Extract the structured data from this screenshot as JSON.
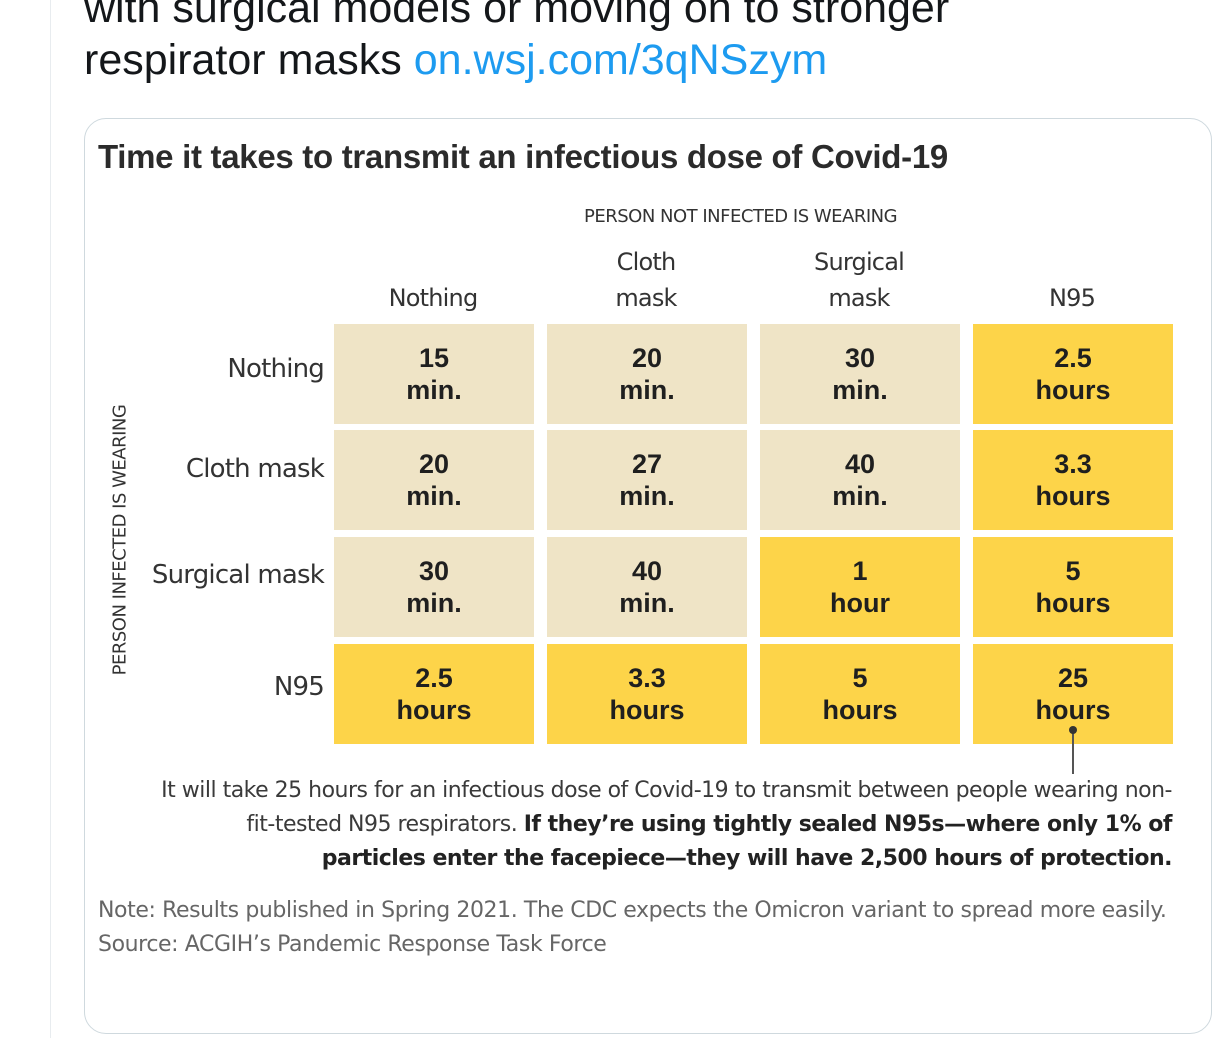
{
  "tweet": {
    "line1": "with surgical models or moving on to stronger",
    "line2_text": "respirator masks",
    "link": "on.wsj.com/3qNSzym"
  },
  "chart": {
    "title": "Time it takes to transmit an infectious dose of Covid-19",
    "col_group_label": "PERSON NOT INFECTED IS WEARING",
    "row_group_label": "PERSON INFECTED IS WEARING",
    "columns": [
      "Nothing",
      "Cloth\nmask",
      "Surgical\nmask",
      "N95"
    ],
    "rows": [
      "Nothing",
      "Cloth mask",
      "Surgical mask",
      "N95"
    ],
    "cells": [
      [
        "15\nmin.",
        "20\nmin.",
        "30\nmin.",
        "2.5\nhours"
      ],
      [
        "20\nmin.",
        "27\nmin.",
        "40\nmin.",
        "3.3\nhours"
      ],
      [
        "30\nmin.",
        "40\nmin.",
        "1\nhour",
        "5\nhours"
      ],
      [
        "2.5\nhours",
        "3.3\nhours",
        "5\nhours",
        "25\nhours"
      ]
    ],
    "annotation_plain": "It will take 25 hours for an infectious dose of Covid-19 to transmit between people wearing non-fit-tested N95 respirators.",
    "annotation_bold": "If they’re using tightly sealed N95s—where only 1% of particles enter the facepiece—they will have 2,500 hours of protection.",
    "note": "Note: Results published in Spring 2021. The CDC expects the Omicron variant to spread more easily.",
    "source": "Source: ACGIH’s Pandemic Response Task Force",
    "colors": {
      "short": "#efe4c6",
      "long": "#fdd449"
    }
  },
  "chart_data": {
    "type": "table",
    "title": "Time it takes to transmit an infectious dose of Covid-19",
    "columns_label": "PERSON NOT INFECTED IS WEARING",
    "rows_label": "PERSON INFECTED IS WEARING",
    "columns": [
      "Nothing",
      "Cloth mask",
      "Surgical mask",
      "N95"
    ],
    "rows": [
      "Nothing",
      "Cloth mask",
      "Surgical mask",
      "N95"
    ],
    "values": [
      [
        "15 min.",
        "20 min.",
        "30 min.",
        "2.5 hours"
      ],
      [
        "20 min.",
        "27 min.",
        "40 min.",
        "3.3 hours"
      ],
      [
        "30 min.",
        "40 min.",
        "1 hour",
        "5 hours"
      ],
      [
        "2.5 hours",
        "3.3 hours",
        "5 hours",
        "25 hours"
      ]
    ]
  }
}
